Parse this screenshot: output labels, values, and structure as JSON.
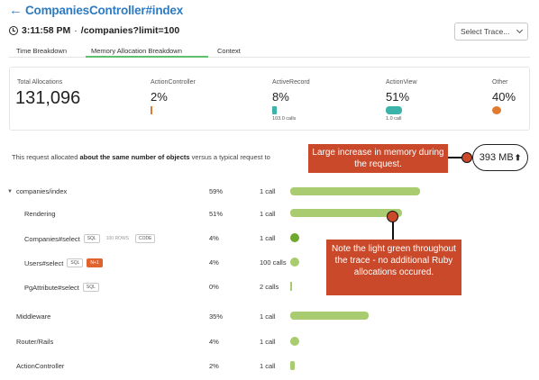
{
  "header": {
    "back_arrow": "←",
    "title": "CompaniesController#index"
  },
  "subheader": {
    "time": "3:11:58 PM",
    "separator": "·",
    "path": "/companies?limit=100"
  },
  "select_trace": {
    "label": "Select Trace..."
  },
  "tabs": [
    {
      "label": "Time Breakdown",
      "active": false
    },
    {
      "label": "Memory Allocation Breakdown",
      "active": true
    },
    {
      "label": "Context",
      "active": false
    }
  ],
  "stats": {
    "total": {
      "label": "Total Allocations",
      "value": "131,096"
    },
    "action_controller": {
      "label": "ActionController",
      "value": "2%"
    },
    "active_record": {
      "label": "ActiveRecord",
      "value": "8%",
      "calls": "103.0 calls"
    },
    "action_view": {
      "label": "ActionView",
      "value": "51%",
      "calls": "1.0 call"
    },
    "other": {
      "label": "Other",
      "value": "40%"
    }
  },
  "summary": {
    "prefix": "This request allocated ",
    "bold": "about the same number of objects",
    "suffix": " versus a typical request to"
  },
  "memory_badge": {
    "value": "393 MB",
    "arrow": "⬆"
  },
  "callouts": {
    "memory": "Large increase in memory during the request.",
    "green": "Note the light green throughout the trace - no additional Ruby allocations occured."
  },
  "trace": [
    {
      "name": "companies/index",
      "pct": "59%",
      "calls": "1 call",
      "caret": "▼",
      "tags": []
    },
    {
      "name": "Rendering",
      "pct": "51%",
      "calls": "1 call",
      "tags": []
    },
    {
      "name": "Companies#select",
      "pct": "4%",
      "calls": "1 call",
      "tags": [
        "SQL",
        "100 ROWS",
        "CODE"
      ]
    },
    {
      "name": "Users#select",
      "pct": "4%",
      "calls": "100 calls",
      "tags": [
        "SQL",
        "N+1"
      ]
    },
    {
      "name": "PgAttribute#select",
      "pct": "0%",
      "calls": "2 calls",
      "tags": [
        "SQL"
      ]
    },
    {
      "name": "Middleware",
      "pct": "35%",
      "calls": "1 call",
      "tags": []
    },
    {
      "name": "Router/Rails",
      "pct": "4%",
      "calls": "1 call",
      "tags": []
    },
    {
      "name": "ActionController",
      "pct": "2%",
      "calls": "1 call",
      "tags": []
    }
  ],
  "colors": {
    "accent": "#2f7bbf",
    "tab_active": "#5fbf6d",
    "callout": "#c9492a",
    "bar_light": "#a8cc6f",
    "bar_dark": "#6fa82c",
    "teal": "#3bb3a8",
    "orange": "#e07b30"
  }
}
